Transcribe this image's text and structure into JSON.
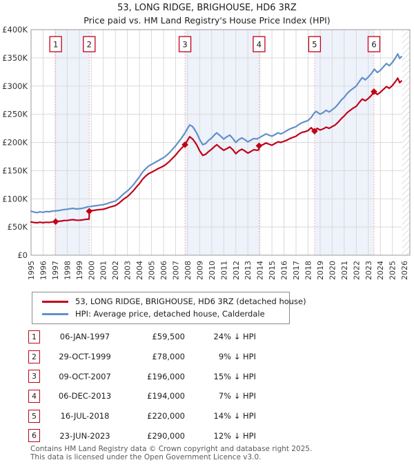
{
  "page": {
    "title_line1": "53, LONG RIDGE, BRIGHOUSE, HD6 3RZ",
    "title_line2": "Price paid vs. HM Land Registry's House Price Index (HPI)",
    "footer_line1": "Contains HM Land Registry data © Crown copyright and database right 2025.",
    "footer_line2": "This data is licensed under the Open Government Licence v3.0."
  },
  "legend": {
    "entries": [
      {
        "label": "53, LONG RIDGE, BRIGHOUSE, HD6 3RZ (detached house)",
        "color": "#c00018"
      },
      {
        "label": "HPI: Average price, detached house, Calderdale",
        "color": "#6090c8"
      }
    ]
  },
  "sales": [
    {
      "num": "1",
      "date": "06-JAN-1997",
      "price": "£59,500",
      "hpi_diff": "24% ↓ HPI",
      "year": 1997.04,
      "value": 59.5
    },
    {
      "num": "2",
      "date": "29-OCT-1999",
      "price": "£78,000",
      "hpi_diff": "9% ↓ HPI",
      "year": 1999.83,
      "value": 78
    },
    {
      "num": "3",
      "date": "09-OCT-2007",
      "price": "£196,000",
      "hpi_diff": "15% ↓ HPI",
      "year": 2007.78,
      "value": 196
    },
    {
      "num": "4",
      "date": "06-DEC-2013",
      "price": "£194,000",
      "hpi_diff": "7% ↓ HPI",
      "year": 2013.93,
      "value": 194
    },
    {
      "num": "5",
      "date": "16-JUL-2018",
      "price": "£220,000",
      "hpi_diff": "14% ↓ HPI",
      "year": 2018.54,
      "value": 220
    },
    {
      "num": "6",
      "date": "23-JUN-2023",
      "price": "£290,000",
      "hpi_diff": "12% ↓ HPI",
      "year": 2023.47,
      "value": 290
    }
  ],
  "chart_data": {
    "type": "line",
    "title": "53, LONG RIDGE, BRIGHOUSE, HD6 3RZ",
    "subtitle": "Price paid vs. HM Land Registry's House Price Index (HPI)",
    "unit": "GBP thousands",
    "xlim": [
      1995,
      2026.45
    ],
    "ylim": [
      0,
      400
    ],
    "grid": true,
    "legend_position": "below",
    "hatch_from": 2025.8,
    "band_color": "#eef2fa",
    "grid_color": "#d9d9d9",
    "border_color": "#999999",
    "sale_line_color": "#f4a0a0",
    "hatch_line_color": "#bbbbbb",
    "bands": [
      [
        1997.04,
        1999.83
      ],
      [
        2007.78,
        2013.93
      ],
      [
        2018.54,
        2023.47
      ]
    ],
    "y_ticks": [
      {
        "v": 0,
        "label": "£0"
      },
      {
        "v": 50,
        "label": "£50K"
      },
      {
        "v": 100,
        "label": "£100K"
      },
      {
        "v": 150,
        "label": "£150K"
      },
      {
        "v": 200,
        "label": "£200K"
      },
      {
        "v": 250,
        "label": "£250K"
      },
      {
        "v": 300,
        "label": "£300K"
      },
      {
        "v": 350,
        "label": "£350K"
      },
      {
        "v": 400,
        "label": "£400K"
      }
    ],
    "x_ticks": [
      1995,
      1996,
      1997,
      1998,
      1999,
      2000,
      2001,
      2002,
      2003,
      2004,
      2005,
      2006,
      2007,
      2008,
      2009,
      2010,
      2011,
      2012,
      2013,
      2014,
      2015,
      2016,
      2017,
      2018,
      2019,
      2020,
      2021,
      2022,
      2023,
      2024,
      2025,
      2026
    ],
    "series": [
      {
        "name": "HPI: Average price, detached house, Calderdale",
        "color": "#6090c8",
        "points": [
          [
            1995.0,
            78
          ],
          [
            1995.25,
            76.5
          ],
          [
            1995.5,
            75.5
          ],
          [
            1995.75,
            77
          ],
          [
            1996.0,
            76
          ],
          [
            1996.25,
            77.5
          ],
          [
            1996.5,
            77
          ],
          [
            1996.75,
            78
          ],
          [
            1997.0,
            78.5
          ],
          [
            1997.25,
            79
          ],
          [
            1997.5,
            80
          ],
          [
            1997.75,
            81
          ],
          [
            1998.0,
            81.5
          ],
          [
            1998.25,
            82.5
          ],
          [
            1998.5,
            83
          ],
          [
            1998.75,
            82
          ],
          [
            1999.0,
            82.5
          ],
          [
            1999.25,
            83
          ],
          [
            1999.5,
            84.5
          ],
          [
            1999.75,
            86
          ],
          [
            2000.0,
            86.5
          ],
          [
            2000.25,
            87.5
          ],
          [
            2000.5,
            88
          ],
          [
            2000.75,
            89
          ],
          [
            2001.0,
            89.5
          ],
          [
            2001.25,
            91
          ],
          [
            2001.5,
            93
          ],
          [
            2001.75,
            94.5
          ],
          [
            2002.0,
            96
          ],
          [
            2002.25,
            100
          ],
          [
            2002.5,
            105
          ],
          [
            2002.75,
            110
          ],
          [
            2003.0,
            114
          ],
          [
            2003.25,
            119
          ],
          [
            2003.5,
            125
          ],
          [
            2003.75,
            132
          ],
          [
            2004.0,
            139
          ],
          [
            2004.25,
            147
          ],
          [
            2004.5,
            153
          ],
          [
            2004.75,
            158
          ],
          [
            2005.0,
            161
          ],
          [
            2005.25,
            164
          ],
          [
            2005.5,
            167
          ],
          [
            2005.75,
            170
          ],
          [
            2006.0,
            173
          ],
          [
            2006.25,
            177
          ],
          [
            2006.5,
            182
          ],
          [
            2006.75,
            188
          ],
          [
            2007.0,
            194
          ],
          [
            2007.25,
            201
          ],
          [
            2007.5,
            208
          ],
          [
            2007.75,
            216
          ],
          [
            2008.0,
            225
          ],
          [
            2008.17,
            231
          ],
          [
            2008.42,
            228
          ],
          [
            2008.75,
            217
          ],
          [
            2009.0,
            205
          ],
          [
            2009.25,
            196
          ],
          [
            2009.5,
            198
          ],
          [
            2009.75,
            204
          ],
          [
            2010.0,
            208
          ],
          [
            2010.25,
            214
          ],
          [
            2010.42,
            217
          ],
          [
            2010.75,
            211
          ],
          [
            2011.0,
            206
          ],
          [
            2011.25,
            210
          ],
          [
            2011.5,
            213
          ],
          [
            2011.75,
            207
          ],
          [
            2012.0,
            200
          ],
          [
            2012.25,
            205
          ],
          [
            2012.5,
            208
          ],
          [
            2012.75,
            205
          ],
          [
            2013.0,
            201
          ],
          [
            2013.25,
            204
          ],
          [
            2013.5,
            207
          ],
          [
            2013.75,
            206
          ],
          [
            2014.0,
            209
          ],
          [
            2014.25,
            212
          ],
          [
            2014.5,
            215
          ],
          [
            2014.75,
            213
          ],
          [
            2015.0,
            211
          ],
          [
            2015.25,
            214
          ],
          [
            2015.5,
            217
          ],
          [
            2015.75,
            215
          ],
          [
            2016.0,
            218
          ],
          [
            2016.25,
            221
          ],
          [
            2016.5,
            224
          ],
          [
            2016.75,
            226
          ],
          [
            2017.0,
            228
          ],
          [
            2017.25,
            232
          ],
          [
            2017.5,
            235
          ],
          [
            2017.75,
            237
          ],
          [
            2018.0,
            239
          ],
          [
            2018.25,
            244
          ],
          [
            2018.5,
            252
          ],
          [
            2018.67,
            255
          ],
          [
            2019.0,
            250
          ],
          [
            2019.25,
            253
          ],
          [
            2019.5,
            257
          ],
          [
            2019.75,
            254
          ],
          [
            2020.0,
            258
          ],
          [
            2020.25,
            262
          ],
          [
            2020.5,
            268
          ],
          [
            2020.75,
            275
          ],
          [
            2021.0,
            280
          ],
          [
            2021.25,
            287
          ],
          [
            2021.5,
            292
          ],
          [
            2021.75,
            296
          ],
          [
            2022.0,
            300
          ],
          [
            2022.25,
            308
          ],
          [
            2022.5,
            315
          ],
          [
            2022.75,
            311
          ],
          [
            2023.0,
            316
          ],
          [
            2023.25,
            322
          ],
          [
            2023.5,
            330
          ],
          [
            2023.75,
            324
          ],
          [
            2024.0,
            328
          ],
          [
            2024.25,
            334
          ],
          [
            2024.5,
            340
          ],
          [
            2024.75,
            336
          ],
          [
            2025.0,
            342
          ],
          [
            2025.25,
            350
          ],
          [
            2025.45,
            357
          ],
          [
            2025.6,
            349
          ],
          [
            2025.75,
            352
          ]
        ]
      },
      {
        "name": "53, LONG RIDGE, BRIGHOUSE, HD6 3RZ (detached house)",
        "color": "#c00018",
        "points": [
          [
            1995.0,
            59
          ],
          [
            1995.25,
            58
          ],
          [
            1995.5,
            57.5
          ],
          [
            1995.75,
            58.5
          ],
          [
            1996.0,
            57.5
          ],
          [
            1996.25,
            58.5
          ],
          [
            1996.5,
            58
          ],
          [
            1996.75,
            59
          ],
          [
            1997.04,
            59.5
          ],
          [
            1997.25,
            60
          ],
          [
            1997.5,
            60.5
          ],
          [
            1997.75,
            61.5
          ],
          [
            1998.0,
            61.5
          ],
          [
            1998.25,
            62.5
          ],
          [
            1998.5,
            63
          ],
          [
            1998.75,
            62
          ],
          [
            1999.0,
            62
          ],
          [
            1999.25,
            62.5
          ],
          [
            1999.5,
            63.5
          ],
          [
            1999.82,
            64
          ],
          [
            1999.84,
            78
          ],
          [
            2000.0,
            79
          ],
          [
            2000.25,
            79.5
          ],
          [
            2000.5,
            80.5
          ],
          [
            2000.75,
            81
          ],
          [
            2001.0,
            81.5
          ],
          [
            2001.25,
            83
          ],
          [
            2001.5,
            85
          ],
          [
            2001.75,
            86.5
          ],
          [
            2002.0,
            88
          ],
          [
            2002.25,
            91.5
          ],
          [
            2002.5,
            96
          ],
          [
            2002.75,
            100.5
          ],
          [
            2003.0,
            104
          ],
          [
            2003.25,
            109
          ],
          [
            2003.5,
            114.5
          ],
          [
            2003.75,
            121
          ],
          [
            2004.0,
            127
          ],
          [
            2004.25,
            134.5
          ],
          [
            2004.5,
            140
          ],
          [
            2004.75,
            144.5
          ],
          [
            2005.0,
            147
          ],
          [
            2005.25,
            150
          ],
          [
            2005.5,
            153
          ],
          [
            2005.75,
            155.5
          ],
          [
            2006.0,
            158
          ],
          [
            2006.25,
            162
          ],
          [
            2006.5,
            166.5
          ],
          [
            2006.75,
            172
          ],
          [
            2007.0,
            177.5
          ],
          [
            2007.25,
            184
          ],
          [
            2007.5,
            190
          ],
          [
            2007.78,
            196
          ],
          [
            2008.0,
            204
          ],
          [
            2008.17,
            210
          ],
          [
            2008.42,
            206
          ],
          [
            2008.75,
            196
          ],
          [
            2009.0,
            185
          ],
          [
            2009.25,
            177
          ],
          [
            2009.5,
            179
          ],
          [
            2009.75,
            184
          ],
          [
            2010.0,
            188
          ],
          [
            2010.25,
            193
          ],
          [
            2010.42,
            196
          ],
          [
            2010.75,
            190
          ],
          [
            2011.0,
            186
          ],
          [
            2011.25,
            189
          ],
          [
            2011.5,
            192
          ],
          [
            2011.75,
            187
          ],
          [
            2012.0,
            180
          ],
          [
            2012.25,
            185
          ],
          [
            2012.5,
            188
          ],
          [
            2012.75,
            185
          ],
          [
            2013.0,
            181
          ],
          [
            2013.25,
            184
          ],
          [
            2013.5,
            187
          ],
          [
            2013.75,
            186
          ],
          [
            2013.92,
            187
          ],
          [
            2013.94,
            194
          ],
          [
            2014.25,
            196
          ],
          [
            2014.5,
            199
          ],
          [
            2014.75,
            197
          ],
          [
            2015.0,
            195
          ],
          [
            2015.25,
            198
          ],
          [
            2015.5,
            201
          ],
          [
            2015.75,
            200
          ],
          [
            2016.0,
            202
          ],
          [
            2016.25,
            204
          ],
          [
            2016.5,
            207
          ],
          [
            2016.75,
            209
          ],
          [
            2017.0,
            211
          ],
          [
            2017.25,
            215
          ],
          [
            2017.5,
            218
          ],
          [
            2017.75,
            219
          ],
          [
            2018.0,
            221
          ],
          [
            2018.25,
            226
          ],
          [
            2018.54,
            220
          ],
          [
            2018.75,
            225
          ],
          [
            2019.0,
            222
          ],
          [
            2019.25,
            224
          ],
          [
            2019.5,
            227
          ],
          [
            2019.75,
            225
          ],
          [
            2020.0,
            228
          ],
          [
            2020.25,
            231
          ],
          [
            2020.5,
            236
          ],
          [
            2020.75,
            242
          ],
          [
            2021.0,
            247
          ],
          [
            2021.25,
            253
          ],
          [
            2021.5,
            257
          ],
          [
            2021.75,
            261
          ],
          [
            2022.0,
            264
          ],
          [
            2022.25,
            271
          ],
          [
            2022.5,
            277
          ],
          [
            2022.75,
            274
          ],
          [
            2023.0,
            278
          ],
          [
            2023.25,
            283
          ],
          [
            2023.47,
            290
          ],
          [
            2023.75,
            285
          ],
          [
            2024.0,
            289
          ],
          [
            2024.25,
            294
          ],
          [
            2024.5,
            299
          ],
          [
            2024.75,
            296
          ],
          [
            2025.0,
            301
          ],
          [
            2025.25,
            308
          ],
          [
            2025.45,
            314
          ],
          [
            2025.6,
            306
          ],
          [
            2025.75,
            309
          ]
        ]
      }
    ]
  }
}
